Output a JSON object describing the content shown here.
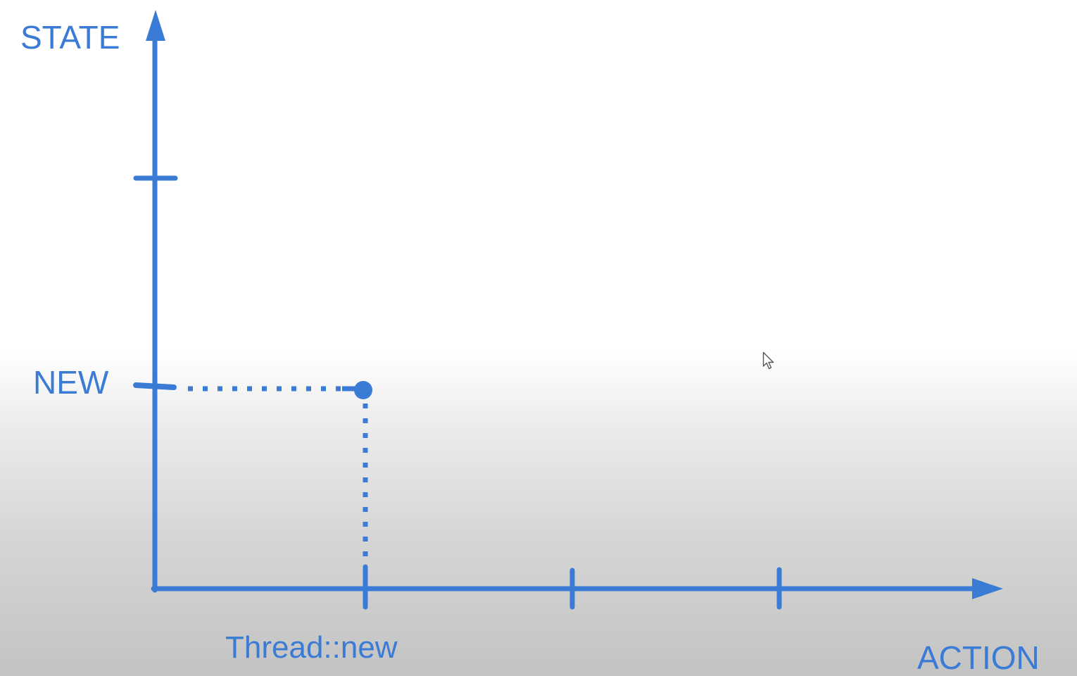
{
  "diagram": {
    "y_axis_label": "STATE",
    "x_axis_label": "ACTION",
    "state_labels": [
      "NEW"
    ],
    "action_labels": [
      "Thread::new"
    ],
    "colors": {
      "accent": "#3a7bd5",
      "background_top": "#ffffff",
      "background_bottom": "#c3c3c3"
    },
    "icons": {
      "cursor": "mouse-pointer-icon"
    }
  }
}
